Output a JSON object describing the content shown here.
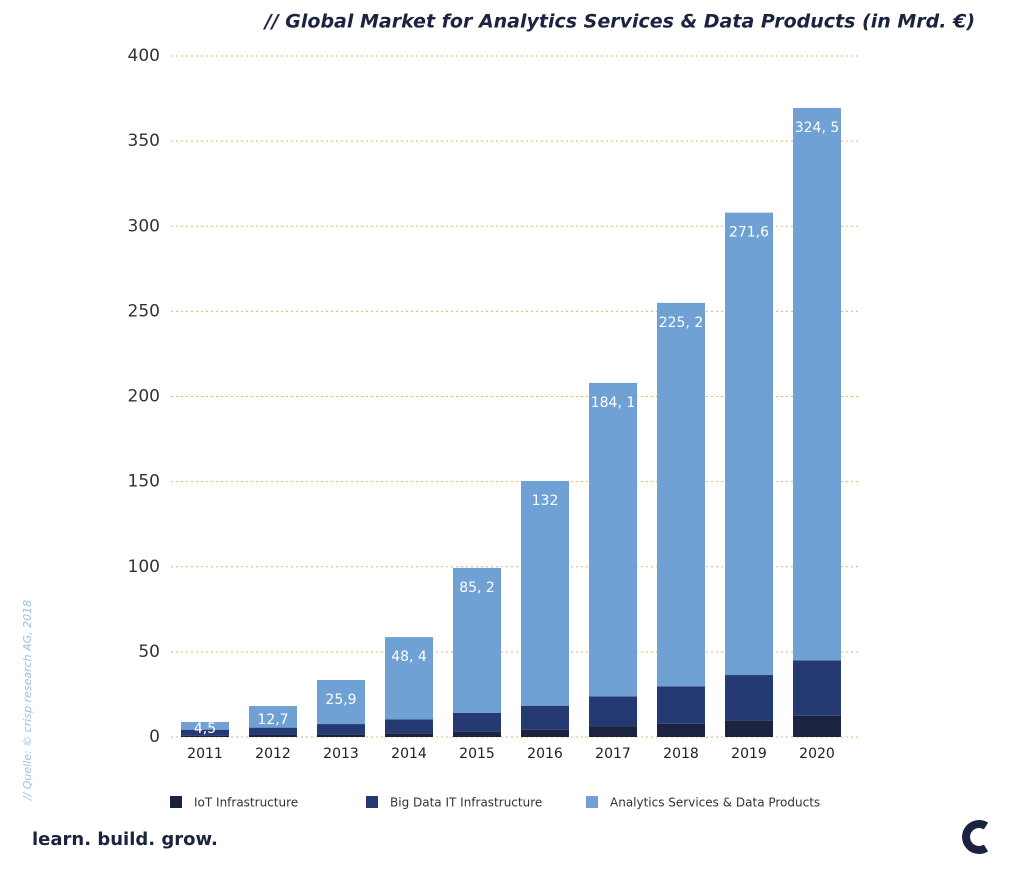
{
  "chart_data": {
    "type": "stacked_bar",
    "title": "// Global Market for Analytics Services & Data Products (in Mrd. €)",
    "categories": [
      "2011",
      "2012",
      "2013",
      "2014",
      "2015",
      "2016",
      "2017",
      "2018",
      "2019",
      "2020"
    ],
    "series": [
      {
        "name": "IoT Infrastructure",
        "color": "#1b2340",
        "values": [
          0.8,
          1.2,
          1.6,
          2.2,
          3.0,
          4.2,
          6.2,
          7.8,
          9.8,
          12.5
        ]
      },
      {
        "name": "Big Data IT Infrastructure",
        "color": "#253a73",
        "values": [
          3.5,
          4.3,
          6.0,
          8.1,
          11.1,
          14.2,
          17.7,
          22.0,
          26.6,
          32.5
        ]
      },
      {
        "name": "Analytics Services & Data Products",
        "color": "#70a1d4",
        "values": [
          4.5,
          12.7,
          25.9,
          48.4,
          85.2,
          132,
          184.1,
          225.2,
          271.6,
          324.5
        ],
        "value_labels": [
          "4,5",
          "12,7",
          "25,9",
          "48, 4",
          "85, 2",
          "132",
          "184, 1",
          "225, 2",
          "271,6",
          "324, 5"
        ]
      }
    ],
    "ylim": [
      0,
      400
    ],
    "yticks": [
      0,
      50,
      100,
      150,
      200,
      250,
      300,
      350,
      400
    ],
    "grid": true,
    "legend": "bottom",
    "source": "// Quelle: © crisp research AG, 2018"
  },
  "footer": {
    "slogan": "learn. build. grow."
  }
}
